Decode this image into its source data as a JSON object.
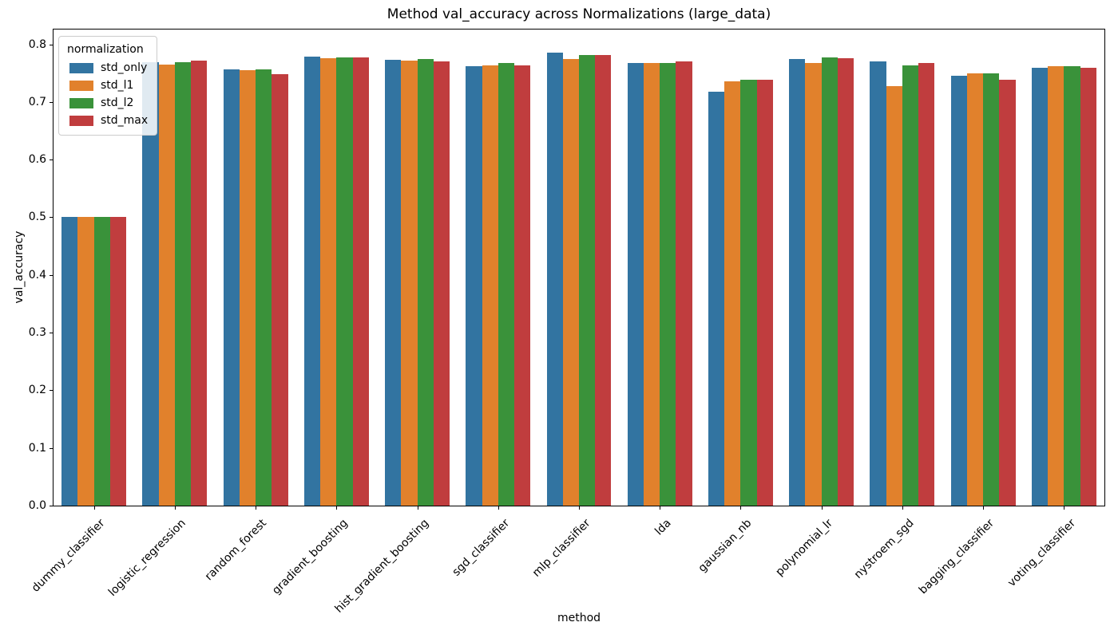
{
  "chart_data": {
    "type": "bar",
    "title": "Method val_accuracy across Normalizations (large_data)",
    "xlabel": "method",
    "ylabel": "val_accuracy",
    "legend_title": "normalization",
    "legend_position": "upper left",
    "grid": false,
    "x_tick_rotation": 45,
    "ylim": [
      0,
      0.827
    ],
    "yticks": [
      0.0,
      0.1,
      0.2,
      0.3,
      0.4,
      0.5,
      0.6,
      0.7,
      0.8
    ],
    "categories": [
      "dummy_classifier",
      "logistic_regression",
      "random_forest",
      "gradient_boosting",
      "hist_gradient_boosting",
      "sgd_classifier",
      "mlp_classifier",
      "lda",
      "gaussian_nb",
      "polynomial_lr",
      "nystroem_sgd",
      "bagging_classifier",
      "voting_classifier"
    ],
    "series": [
      {
        "name": "std_only",
        "color": "#3274A1",
        "values": [
          0.5,
          0.769,
          0.757,
          0.778,
          0.773,
          0.762,
          0.785,
          0.767,
          0.718,
          0.774,
          0.77,
          0.745,
          0.759
        ]
      },
      {
        "name": "std_l1",
        "color": "#E1812C",
        "values": [
          0.5,
          0.765,
          0.755,
          0.776,
          0.772,
          0.764,
          0.774,
          0.767,
          0.736,
          0.767,
          0.728,
          0.749,
          0.762
        ]
      },
      {
        "name": "std_l2",
        "color": "#3A923A",
        "values": [
          0.5,
          0.769,
          0.756,
          0.777,
          0.775,
          0.768,
          0.782,
          0.767,
          0.739,
          0.777,
          0.764,
          0.75,
          0.762
        ]
      },
      {
        "name": "std_max",
        "color": "#C03D3E",
        "values": [
          0.5,
          0.771,
          0.748,
          0.777,
          0.77,
          0.764,
          0.782,
          0.77,
          0.738,
          0.776,
          0.767,
          0.739,
          0.759
        ]
      }
    ]
  }
}
